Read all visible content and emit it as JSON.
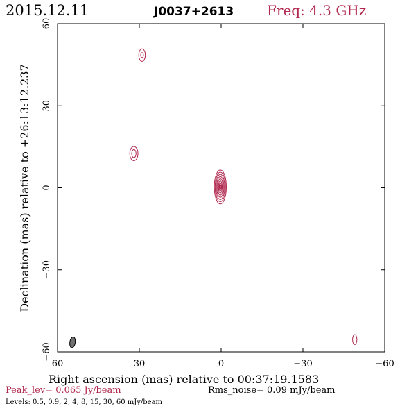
{
  "header": {
    "date": "2015.12.11",
    "source": "J0037+2613",
    "freq": "Freq: 4.3 GHz"
  },
  "footer": {
    "peak": "Peak_lev=  0.065 Jy/beam",
    "rms": "Rms_noise= 0.09 mJy/beam",
    "levels": "Levels: 0.5, 0.9,   2,   4,   8,  15,  30,  60 mJy/beam"
  },
  "colors": {
    "contour": "#b0284e",
    "peak_text": "#b0284e",
    "freq_text": "#b0284e",
    "beam_fill": "#707070",
    "axis": "#000000"
  },
  "chart_data": {
    "type": "contour",
    "title": "J0037+2613",
    "xlabel": "Right ascension (mas) relative to 00:37:19.1583",
    "ylabel": "Declination (mas) relative to +26:13:12.237",
    "xlim": [
      60,
      -60
    ],
    "ylim": [
      -60,
      60
    ],
    "xticks": [
      60,
      30,
      0,
      -30,
      -60
    ],
    "yticks": [
      -60,
      -30,
      0,
      30,
      60
    ],
    "xtick_labels": [
      "60",
      "30",
      "0",
      "−30",
      "−60"
    ],
    "ytick_labels": [
      "−60",
      "−30",
      "0",
      "30",
      "60"
    ],
    "grid": false,
    "contour_levels_mJy": [
      0.5,
      0.9,
      2,
      4,
      8,
      15,
      30,
      60
    ],
    "components": [
      {
        "x": 0.3,
        "y": 0.3,
        "rings": [
          {
            "rx": 2.2,
            "ry": 6.2
          },
          {
            "rx": 1.9,
            "ry": 5.4
          },
          {
            "rx": 1.6,
            "ry": 4.6
          },
          {
            "rx": 1.3,
            "ry": 3.8
          },
          {
            "rx": 1.0,
            "ry": 3.0
          },
          {
            "rx": 0.7,
            "ry": 2.2
          },
          {
            "rx": 0.45,
            "ry": 1.4
          },
          {
            "rx": 0.25,
            "ry": 0.7
          }
        ]
      },
      {
        "x": 32.0,
        "y": 12.5,
        "rings": [
          {
            "rx": 1.5,
            "ry": 2.6
          },
          {
            "rx": 0.8,
            "ry": 1.5
          }
        ]
      },
      {
        "x": 29.0,
        "y": 48.5,
        "rings": [
          {
            "rx": 1.2,
            "ry": 2.3
          },
          {
            "rx": 0.5,
            "ry": 0.9
          }
        ]
      },
      {
        "x": -49.0,
        "y": -55.5,
        "rings": [
          {
            "rx": 0.8,
            "ry": 1.8
          }
        ]
      }
    ],
    "beam": {
      "x": 54.5,
      "y": -56.5,
      "major": 2.0,
      "minor": 1.0
    }
  }
}
